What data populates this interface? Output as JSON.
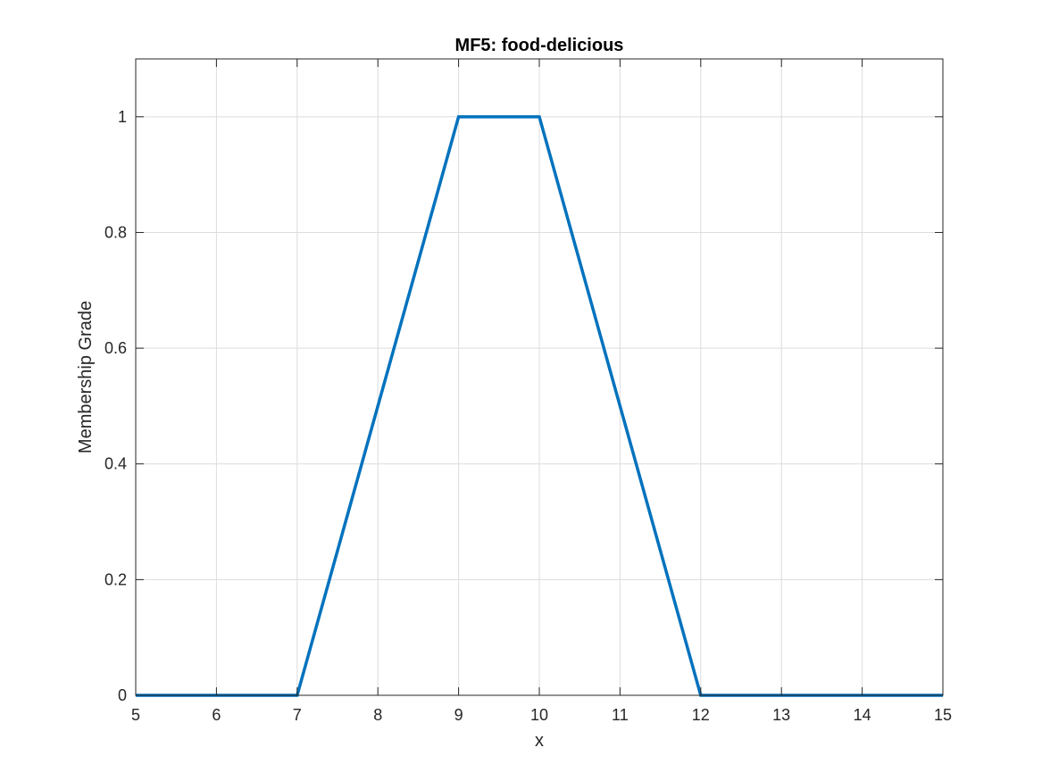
{
  "chart_data": {
    "type": "line",
    "title": "MF5: food-delicious",
    "xlabel": "x",
    "ylabel": "Membership Grade",
    "xlim": [
      5,
      15
    ],
    "ylim": [
      0,
      1.1
    ],
    "xticks": [
      5,
      6,
      7,
      8,
      9,
      10,
      11,
      12,
      13,
      14,
      15
    ],
    "yticks": [
      0,
      0.2,
      0.4,
      0.6,
      0.8,
      1
    ],
    "xtick_labels": [
      "5",
      "6",
      "7",
      "8",
      "9",
      "10",
      "11",
      "12",
      "13",
      "14",
      "15"
    ],
    "ytick_labels": [
      "0",
      "0.2",
      "0.4",
      "0.6",
      "0.8",
      "1"
    ],
    "grid": true,
    "series": [
      {
        "color": "#0072BD",
        "x": [
          5,
          7,
          9,
          10,
          12,
          15
        ],
        "y": [
          0,
          0,
          1,
          1,
          0,
          0
        ]
      }
    ]
  }
}
